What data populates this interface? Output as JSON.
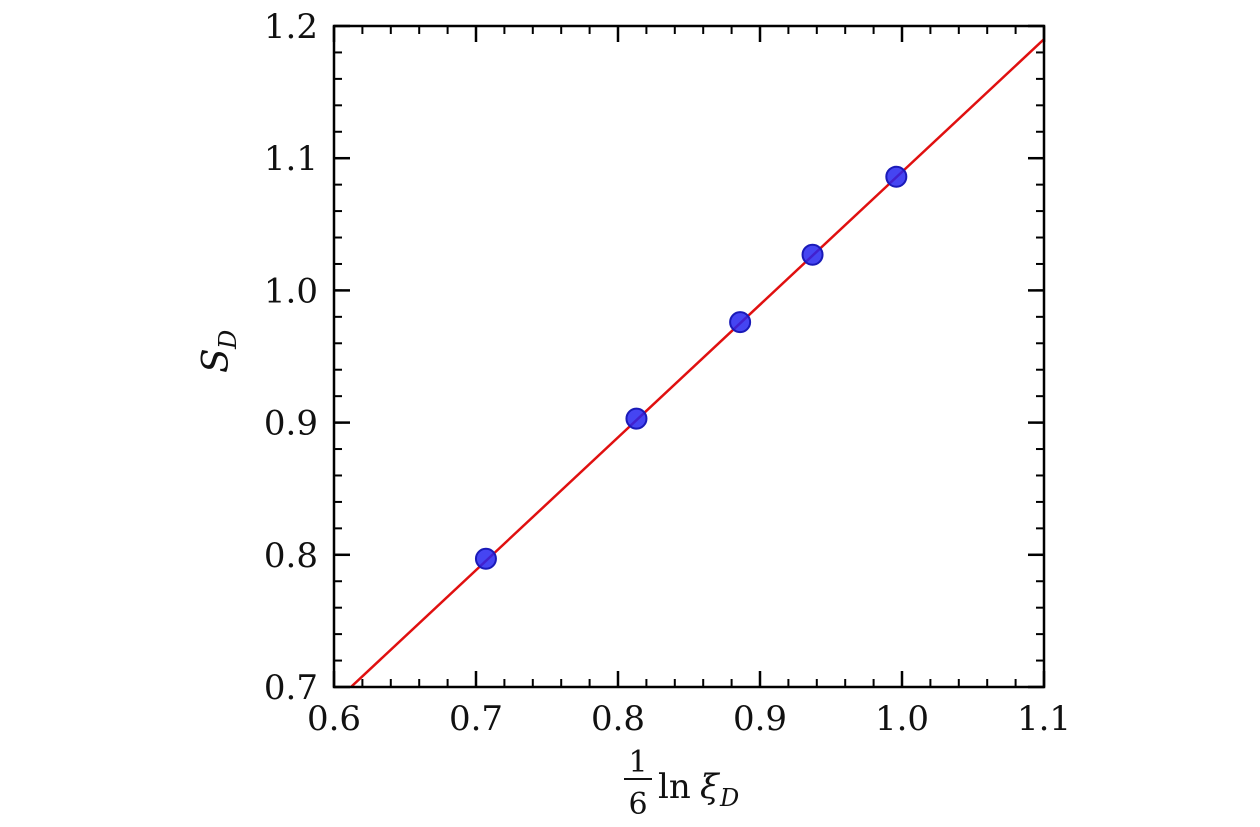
{
  "chart_data": {
    "type": "scatter",
    "title": "",
    "xlabel": {
      "fraction_numerator": "1",
      "fraction_denominator": "6",
      "text": "ln",
      "symbol": "ξ",
      "subscript": "D"
    },
    "ylabel": {
      "symbol": "S",
      "subscript": "D"
    },
    "xlim": [
      0.6,
      1.1
    ],
    "ylim": [
      0.7,
      1.2
    ],
    "x_ticks": [
      "0.6",
      "0.7",
      "0.8",
      "0.9",
      "1.0",
      "1.1"
    ],
    "y_ticks": [
      "0.7",
      "0.8",
      "0.9",
      "1.0",
      "1.1",
      "1.2"
    ],
    "x_tick_values": [
      0.6,
      0.7,
      0.8,
      0.9,
      1.0,
      1.1
    ],
    "y_tick_values": [
      0.7,
      0.8,
      0.9,
      1.0,
      1.1,
      1.2
    ],
    "x_minor_step": 0.02,
    "y_minor_step": 0.02,
    "grid": false,
    "legend": "none",
    "points": [
      {
        "x": 0.707,
        "y": 0.797
      },
      {
        "x": 0.813,
        "y": 0.903
      },
      {
        "x": 0.886,
        "y": 0.976
      },
      {
        "x": 0.937,
        "y": 1.027
      },
      {
        "x": 0.996,
        "y": 1.086
      }
    ],
    "fit_line": {
      "x": [
        0.6,
        1.1
      ],
      "y": [
        0.688,
        1.19
      ]
    },
    "colors": {
      "points": "#2424f0",
      "point_edge": "#1a1ab8",
      "fit_line": "#e01010",
      "axes": "#000000"
    }
  }
}
